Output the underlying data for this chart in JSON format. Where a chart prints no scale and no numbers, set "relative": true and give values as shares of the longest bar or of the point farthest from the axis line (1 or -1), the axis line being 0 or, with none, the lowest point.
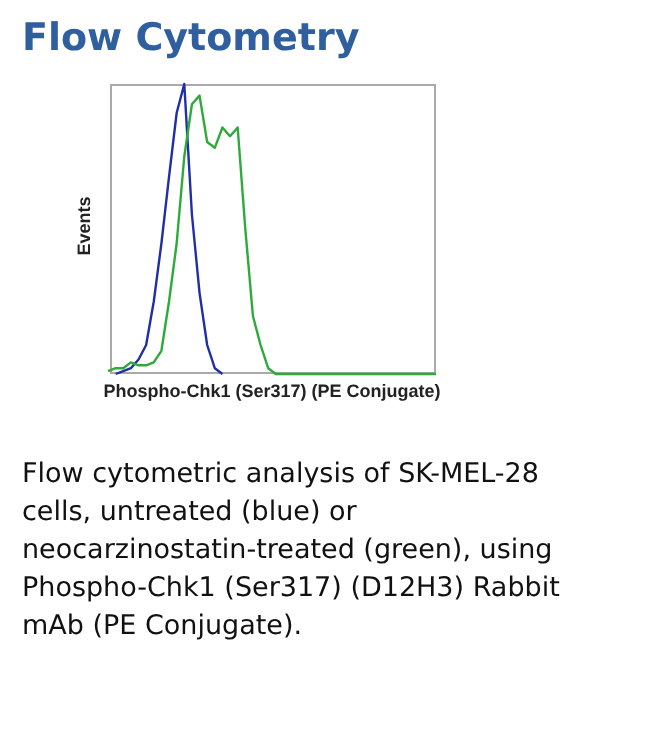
{
  "chart_data": {
    "type": "line",
    "title": "Flow Cytometry",
    "xlabel": "Phospho-Chk1 (Ser317) (PE Conjugate)",
    "ylabel": "Events",
    "relative": true,
    "tick_labels": false,
    "marker": "none",
    "legend": false,
    "categories": [
      null,
      null,
      null,
      null,
      null,
      null,
      null,
      null,
      null,
      null,
      null,
      null,
      null,
      null,
      null,
      null,
      null,
      null,
      null,
      null,
      null,
      null,
      null,
      null,
      null,
      null,
      null,
      null,
      null,
      null,
      null,
      null,
      null,
      null,
      null,
      null,
      null,
      null,
      null,
      null,
      null,
      null,
      null,
      null
    ],
    "series": [
      {
        "color": "#1f2fa8",
        "values": [
          null,
          0,
          0.01,
          0.02,
          0.05,
          0.1,
          0.25,
          0.45,
          0.68,
          0.9,
          1,
          0.55,
          0.28,
          0.1,
          0.02,
          0,
          null,
          null,
          null,
          null,
          null,
          null,
          null,
          null,
          null,
          null,
          null,
          null,
          null,
          null,
          null,
          null,
          null,
          null,
          null,
          null,
          null,
          null,
          null,
          null,
          null,
          null,
          null,
          null
        ]
      },
      {
        "color": "#2eaa3a",
        "values": [
          0.01,
          0.02,
          0.02,
          0.04,
          0.03,
          0.03,
          0.04,
          0.08,
          0.25,
          0.45,
          0.75,
          0.93,
          0.96,
          0.8,
          0.78,
          0.85,
          0.82,
          0.85,
          0.5,
          0.2,
          0.1,
          0.02,
          0,
          0,
          0,
          0,
          0,
          0,
          0,
          0,
          0,
          0,
          0,
          0,
          0,
          0,
          0,
          0,
          0,
          0,
          0,
          0,
          0,
          0
        ]
      }
    ],
    "annotations": [
      "Flow cytometric analysis of SK-MEL-28 cells, untreated (blue) or neocarzinostatin-treated (green), using Phospho-Chk1 (Ser317) (D12H3) Rabbit mAb (PE Conjugate)."
    ]
  }
}
